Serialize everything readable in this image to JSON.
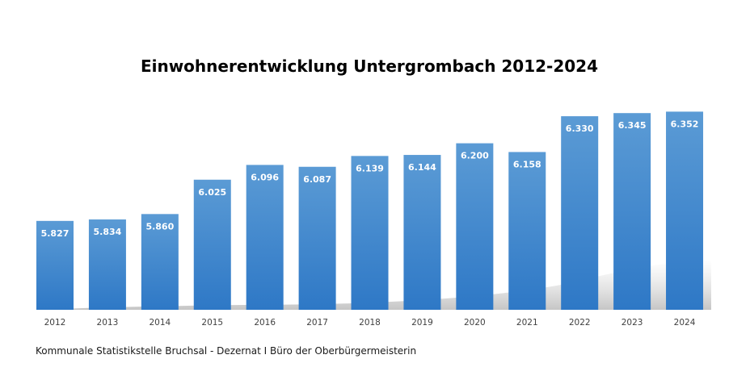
{
  "chart_data": {
    "type": "bar",
    "title": "Einwohnerentwicklung Untergrombach 2012-2024",
    "categories": [
      "2012",
      "2013",
      "2014",
      "2015",
      "2016",
      "2017",
      "2018",
      "2019",
      "2020",
      "2021",
      "2022",
      "2023",
      "2024"
    ],
    "values": [
      5827,
      5834,
      5860,
      6025,
      6096,
      6087,
      6139,
      6144,
      6200,
      6158,
      6330,
      6345,
      6352
    ],
    "data_labels": [
      "5.827",
      "5.834",
      "5.860",
      "6.025",
      "6.096",
      "6.087",
      "6.139",
      "6.144",
      "6.200",
      "6.158",
      "6.330",
      "6.345",
      "6.352"
    ],
    "xlabel": "",
    "ylabel": "",
    "ylim": [
      5400,
      6400
    ],
    "grid": false,
    "legend": "none",
    "bar_color_top": "#5b9bd5",
    "bar_color_bottom": "#2e78c6"
  },
  "footer": {
    "source": "Kommunale Statistikstelle Bruchsal - Dezernat I Büro der Oberbürgermeisterin"
  }
}
